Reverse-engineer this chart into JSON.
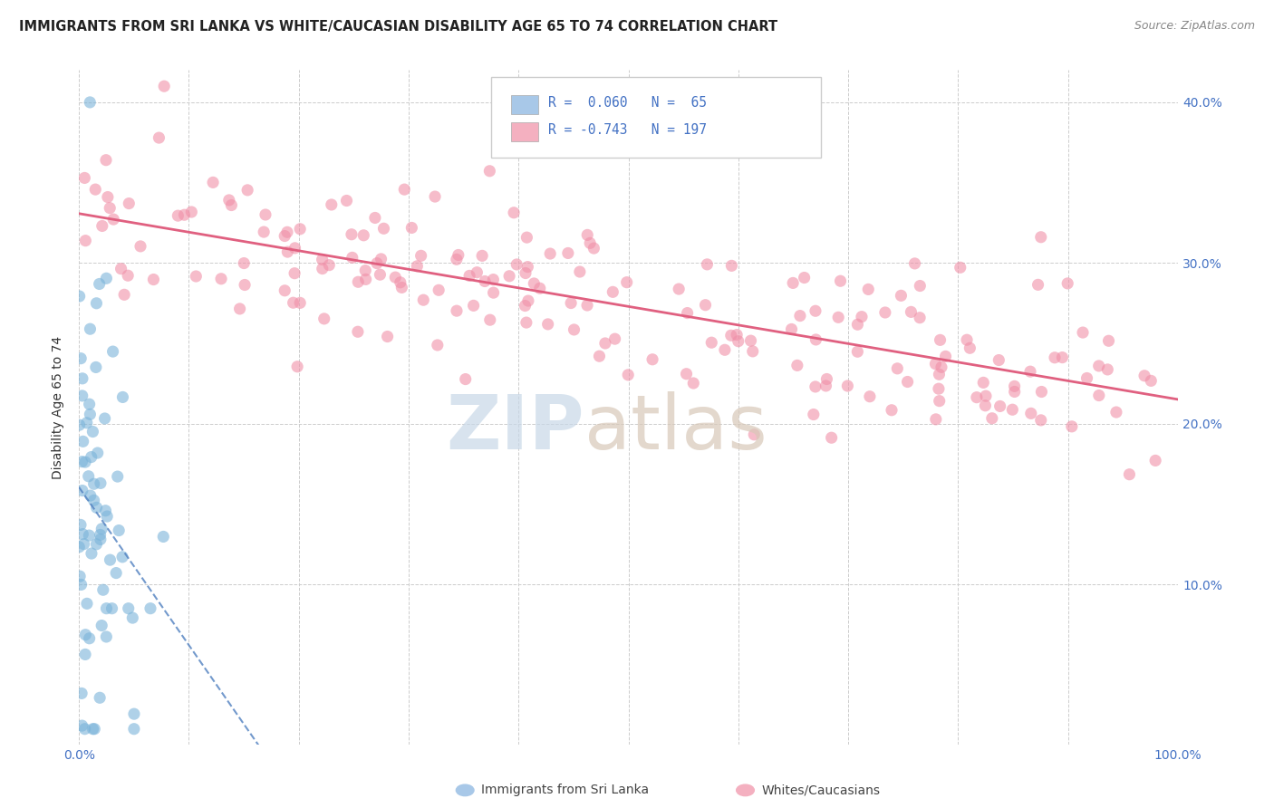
{
  "title": "IMMIGRANTS FROM SRI LANKA VS WHITE/CAUCASIAN DISABILITY AGE 65 TO 74 CORRELATION CHART",
  "source": "Source: ZipAtlas.com",
  "ylabel": "Disability Age 65 to 74",
  "xlim": [
    0.0,
    1.0
  ],
  "ylim": [
    0.0,
    0.42
  ],
  "xticks": [
    0.0,
    0.1,
    0.2,
    0.3,
    0.4,
    0.5,
    0.6,
    0.7,
    0.8,
    0.9,
    1.0
  ],
  "xtick_labels": [
    "0.0%",
    "",
    "",
    "",
    "",
    "",
    "",
    "",
    "",
    "",
    "100.0%"
  ],
  "yticks": [
    0.0,
    0.1,
    0.2,
    0.3,
    0.4
  ],
  "ytick_labels_left": [
    "",
    "",
    "",
    "",
    ""
  ],
  "ytick_labels_right": [
    "",
    "10.0%",
    "20.0%",
    "30.0%",
    "40.0%"
  ],
  "blue_scatter_color": "#7ab3d9",
  "pink_scatter_color": "#f090a8",
  "blue_line_color": "#5080c0",
  "pink_line_color": "#e06080",
  "blue_legend_color": "#a8c8e8",
  "pink_legend_color": "#f4b0c0",
  "r_blue": 0.06,
  "n_blue": 65,
  "r_pink": -0.743,
  "n_pink": 197,
  "background_color": "#ffffff",
  "grid_color": "#cccccc",
  "tick_label_color": "#4472c4",
  "title_color": "#222222",
  "source_color": "#888888",
  "watermark_zip_color": "#c8d8e8",
  "watermark_atlas_color": "#d8c8b8",
  "legend_text_color": "#4472c4",
  "bottom_label_color": "#444444"
}
